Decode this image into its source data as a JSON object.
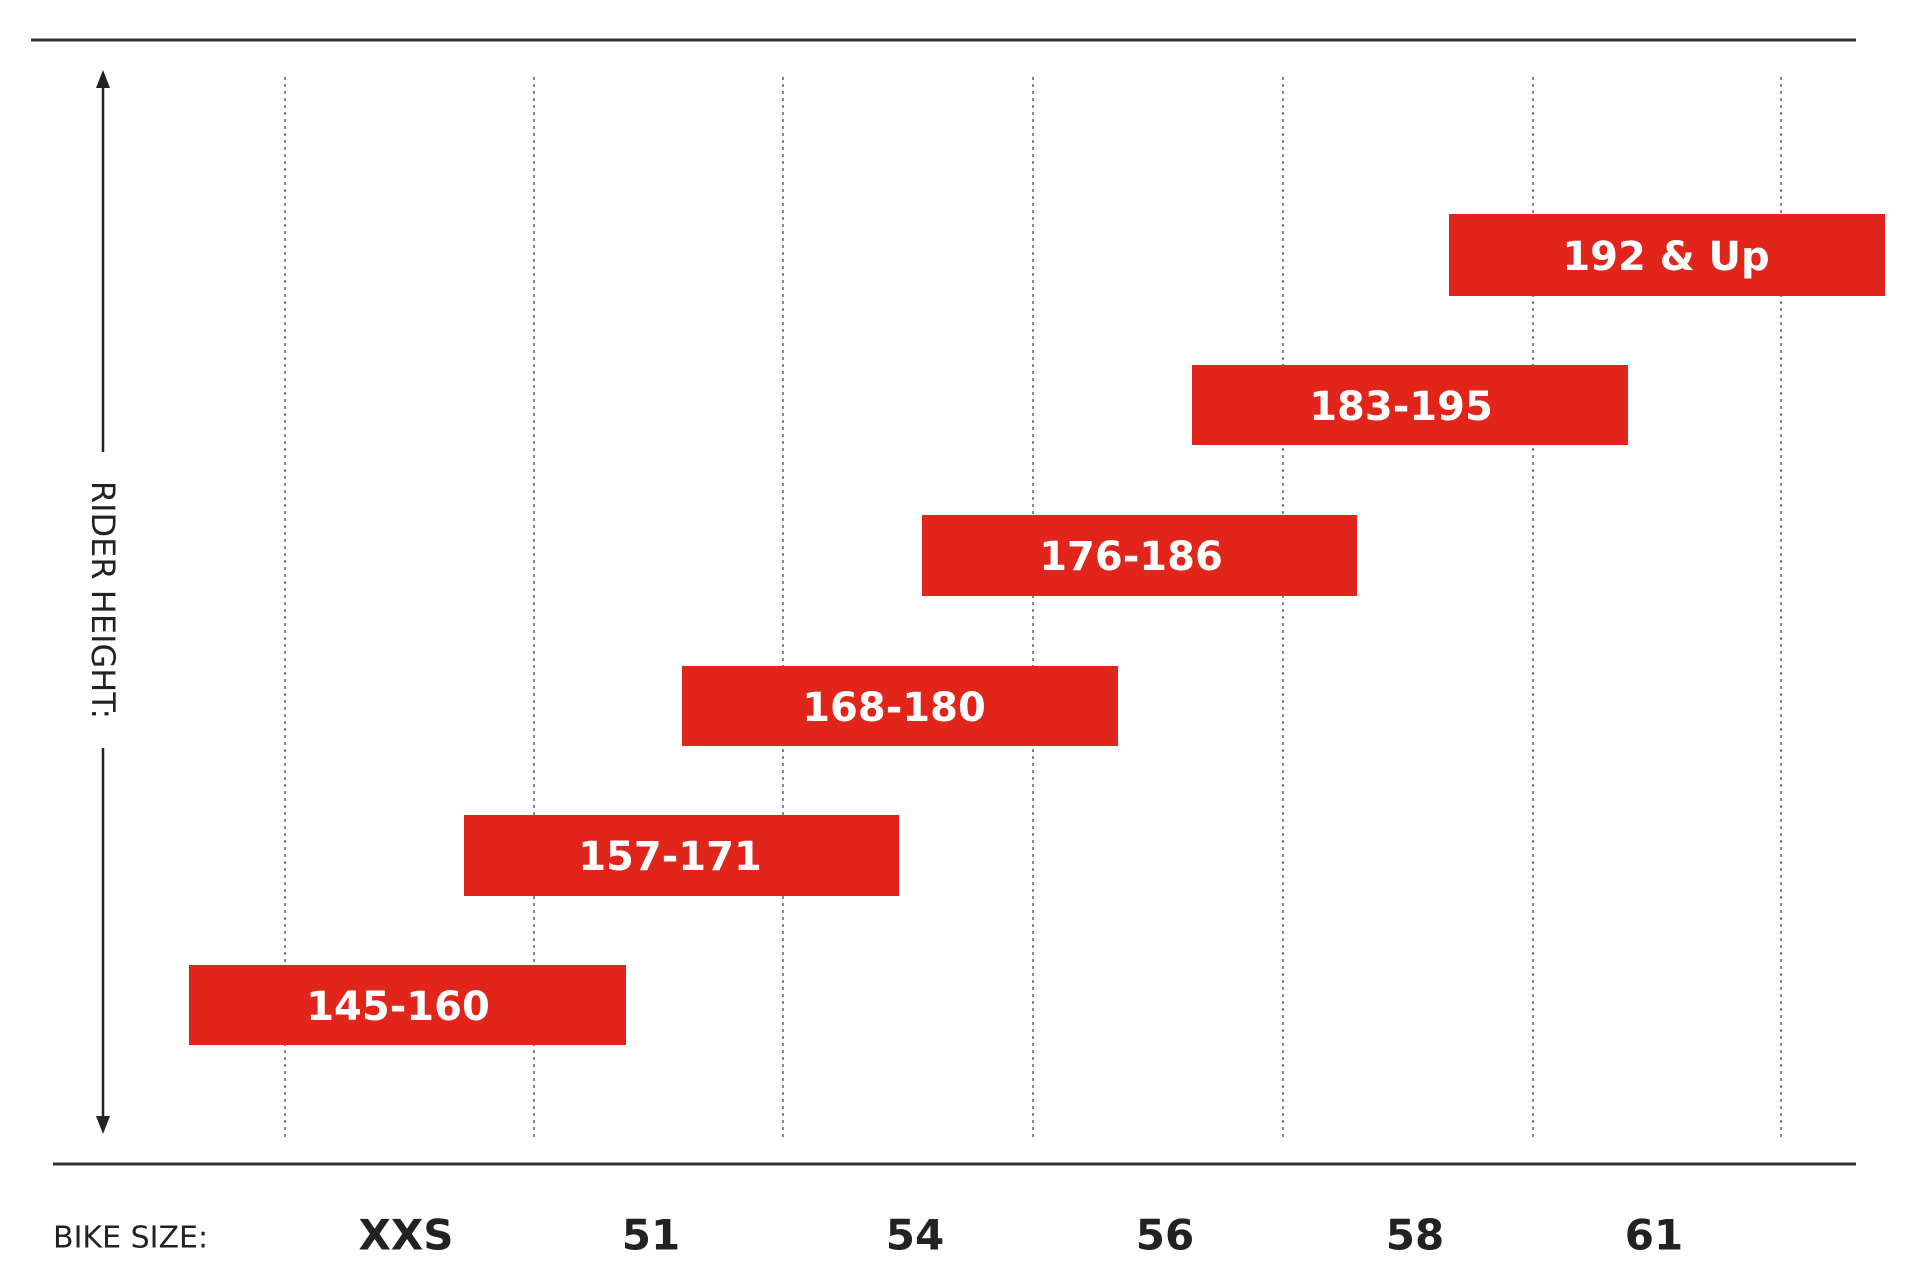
{
  "axis_label": "RIDER HEIGHT:",
  "size_label": "BIKE SIZE:",
  "sizes": [
    "XXS",
    "51",
    "54",
    "56",
    "58",
    "61"
  ],
  "ranges": [
    "145-160",
    "157-171",
    "168-180",
    "176-186",
    "183-195",
    "192 & Up"
  ]
}
